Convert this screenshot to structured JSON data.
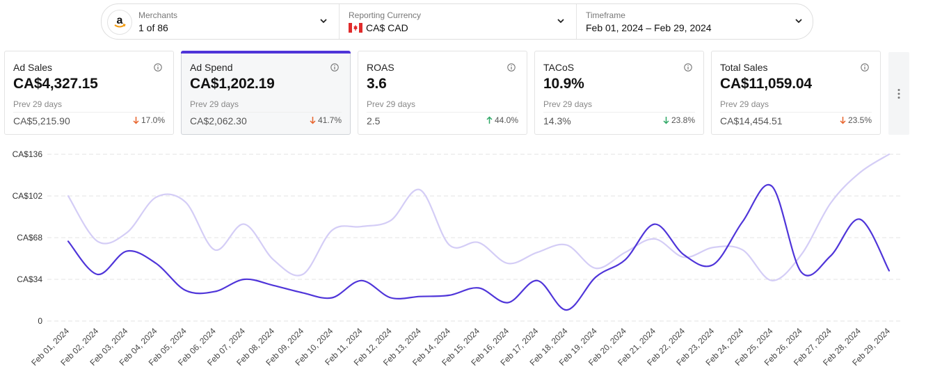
{
  "filters": {
    "merchants": {
      "label": "Merchants",
      "value": "1 of 86",
      "icon": "amazon-logo"
    },
    "currency": {
      "label": "Reporting Currency",
      "value": "CA$ CAD",
      "icon": "canada-flag"
    },
    "timeframe": {
      "label": "Timeframe",
      "value": "Feb 01, 2024 – Feb 29, 2024"
    }
  },
  "cards": [
    {
      "title": "Ad Sales",
      "value": "CA$4,327.15",
      "prev_label": "Prev 29 days",
      "prev_value": "CA$5,215.90",
      "change": "17.0%",
      "direction": "down",
      "active": false
    },
    {
      "title": "Ad Spend",
      "value": "CA$1,202.19",
      "prev_label": "Prev 29 days",
      "prev_value": "CA$2,062.30",
      "change": "41.7%",
      "direction": "down",
      "active": true
    },
    {
      "title": "ROAS",
      "value": "3.6",
      "prev_label": "Prev 29 days",
      "prev_value": "2.5",
      "change": "44.0%",
      "direction": "up",
      "active": false
    },
    {
      "title": "TACoS",
      "value": "10.9%",
      "prev_label": "Prev 29 days",
      "prev_value": "14.3%",
      "change": "23.8%",
      "direction": "down",
      "active": false
    },
    {
      "title": "Total Sales",
      "value": "CA$11,059.04",
      "prev_label": "Prev 29 days",
      "prev_value": "CA$14,454.51",
      "change": "23.5%",
      "direction": "down",
      "active": false
    }
  ],
  "colors": {
    "accent": "#4f35d9",
    "previous_series": "#d4cdf6",
    "down": "#e8642c",
    "up": "#2fa866"
  },
  "chart_data": {
    "type": "line",
    "ylim": [
      0,
      136
    ],
    "yticks": [
      0,
      34,
      68,
      102,
      136
    ],
    "ytick_labels": [
      "0",
      "CA$34",
      "CA$68",
      "CA$102",
      "CA$136"
    ],
    "grid": true,
    "categories": [
      "Feb 01, 2024",
      "Feb 02, 2024",
      "Feb 03, 2024",
      "Feb 04, 2024",
      "Feb 05, 2024",
      "Feb 06, 2024",
      "Feb 07, 2024",
      "Feb 08, 2024",
      "Feb 09, 2024",
      "Feb 10, 2024",
      "Feb 11, 2024",
      "Feb 12, 2024",
      "Feb 13, 2024",
      "Feb 14, 2024",
      "Feb 15, 2024",
      "Feb 16, 2024",
      "Feb 17, 2024",
      "Feb 18, 2024",
      "Feb 19, 2024",
      "Feb 20, 2024",
      "Feb 21, 2024",
      "Feb 22, 2024",
      "Feb 23, 2024",
      "Feb 24, 2024",
      "Feb 25, 2024",
      "Feb 26, 2024",
      "Feb 27, 2024",
      "Feb 28, 2024",
      "Feb 29, 2024"
    ],
    "series": [
      {
        "values": [
          65,
          38,
          57,
          47,
          25,
          24,
          34,
          29,
          23,
          19,
          33,
          19,
          20,
          21,
          27,
          15,
          33,
          9,
          36,
          50,
          79,
          54,
          46,
          81,
          110,
          40,
          53,
          83,
          41
        ]
      },
      {
        "values": [
          102,
          65,
          72,
          101,
          97,
          58,
          79,
          50,
          38,
          74,
          77,
          82,
          107,
          62,
          64,
          47,
          56,
          62,
          43,
          56,
          67,
          52,
          60,
          58,
          33,
          54,
          96,
          121,
          136
        ]
      }
    ]
  }
}
